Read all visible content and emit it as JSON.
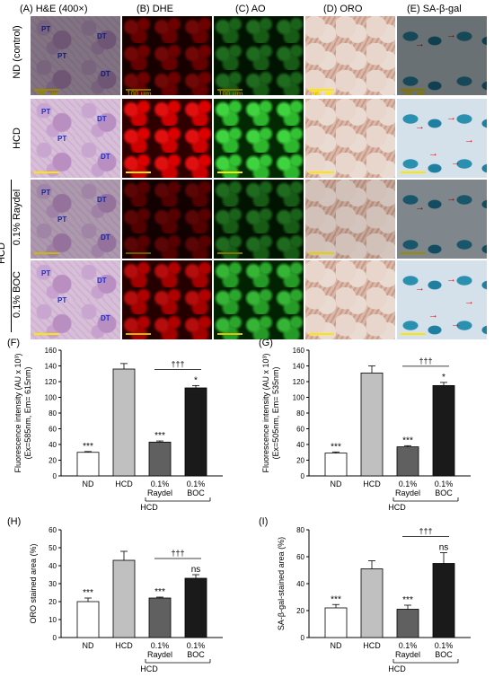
{
  "columns": [
    "(A) H&E (400×)",
    "(B) DHE",
    "(C) AO",
    "(D) ORO",
    "(E) SA-β-gal"
  ],
  "rows": [
    "ND (control)",
    "HCD",
    "0.1% Raydel",
    "0.1% BOC"
  ],
  "row_group": "HCD",
  "scale_bar": "100 μm",
  "he_marks": [
    "PT",
    "DT"
  ],
  "colors": {
    "he": "#d8bfd8",
    "dhe": "#b00000",
    "ao": "#2ea82e",
    "oro": "#d9b8a8",
    "sagal": "#2b8fb0",
    "bar_white": "#ffffff",
    "bar_light": "#c0c0c0",
    "bar_dark": "#606060",
    "bar_black": "#1a1a1a"
  },
  "chart_data": [
    {
      "panel": "(F)",
      "type": "bar",
      "ylabel_lines": [
        "Fluorescence intensity (AU x 10³)",
        "(Ex=585nm, Em= 615nm)"
      ],
      "ylim": [
        0,
        160
      ],
      "yticks": [
        0,
        20,
        40,
        60,
        80,
        100,
        120,
        140,
        160
      ],
      "categories": [
        "ND",
        "HCD",
        "0.1%\nRaydel",
        "0.1%\nBOC"
      ],
      "values": [
        30,
        136,
        43,
        112
      ],
      "errors": [
        1,
        7,
        1.5,
        3
      ],
      "significance": [
        "***",
        "",
        "***",
        "*"
      ],
      "bracket_label": "†††",
      "group_label": "HCD"
    },
    {
      "panel": "(G)",
      "type": "bar",
      "ylabel_lines": [
        "Fluorescence intensity (AU x 10³)",
        "(Ex=505nm, Em= 535nm)"
      ],
      "ylim": [
        0,
        160
      ],
      "yticks": [
        0,
        20,
        40,
        60,
        80,
        100,
        120,
        140,
        160
      ],
      "categories": [
        "ND",
        "HCD",
        "0.1%\nRaydel",
        "0.1%\nBOC"
      ],
      "values": [
        29,
        131,
        37,
        115
      ],
      "errors": [
        1.5,
        9,
        1.5,
        4
      ],
      "significance": [
        "***",
        "",
        "***",
        "*"
      ],
      "bracket_label": "†††",
      "group_label": "HCD"
    },
    {
      "panel": "(H)",
      "type": "bar",
      "ylabel_lines": [
        "ORO stained area (%)"
      ],
      "ylim": [
        0,
        60
      ],
      "yticks": [
        0,
        10,
        20,
        30,
        40,
        50,
        60
      ],
      "categories": [
        "ND",
        "HCD",
        "0.1%\nRaydel",
        "0.1%\nBOC"
      ],
      "values": [
        20,
        43,
        22,
        33
      ],
      "errors": [
        2,
        5,
        0.5,
        2
      ],
      "significance": [
        "***",
        "",
        "***",
        "ns"
      ],
      "bracket_label": "†††",
      "group_label": "HCD"
    },
    {
      "panel": "(I)",
      "type": "bar",
      "ylabel_lines": [
        "SA-β-gal-stained area (%)"
      ],
      "ylim": [
        0,
        80
      ],
      "yticks": [
        0,
        20,
        40,
        60,
        80
      ],
      "categories": [
        "ND",
        "HCD",
        "0.1%\nRaydel",
        "0.1%\nBOC"
      ],
      "values": [
        22,
        51,
        21,
        55
      ],
      "errors": [
        2.5,
        6,
        3,
        8
      ],
      "significance": [
        "***",
        "",
        "***",
        "ns"
      ],
      "bracket_label": "†††",
      "group_label": "HCD"
    }
  ]
}
